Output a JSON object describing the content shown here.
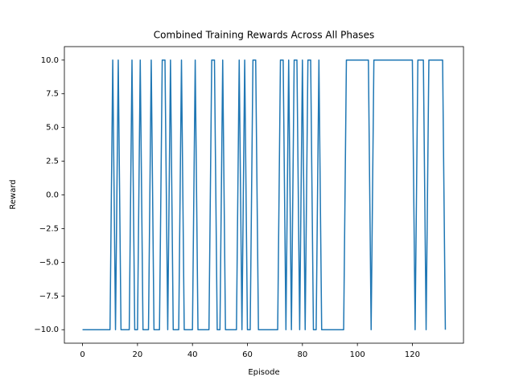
{
  "chart_data": {
    "type": "line",
    "title": "Combined Training Rewards Across All Phases",
    "x_label": "Episode",
    "y_label": "Reward",
    "x": [
      0,
      1,
      2,
      3,
      4,
      5,
      6,
      7,
      8,
      9,
      10,
      11,
      12,
      13,
      14,
      15,
      16,
      17,
      18,
      19,
      20,
      21,
      22,
      23,
      24,
      25,
      26,
      27,
      28,
      29,
      30,
      31,
      32,
      33,
      34,
      35,
      36,
      37,
      38,
      39,
      40,
      41,
      42,
      43,
      44,
      45,
      46,
      47,
      48,
      49,
      50,
      51,
      52,
      53,
      54,
      55,
      56,
      57,
      58,
      59,
      60,
      61,
      62,
      63,
      64,
      65,
      66,
      67,
      68,
      69,
      70,
      71,
      72,
      73,
      74,
      75,
      76,
      77,
      78,
      79,
      80,
      81,
      82,
      83,
      84,
      85,
      86,
      87,
      88,
      89,
      90,
      91,
      92,
      93,
      94,
      95,
      96,
      97,
      98,
      99,
      100,
      101,
      102,
      103,
      104,
      105,
      106,
      107,
      108,
      109,
      110,
      111,
      112,
      113,
      114,
      115,
      116,
      117,
      118,
      119,
      120,
      121,
      122,
      123,
      124,
      125,
      126,
      127,
      128,
      129,
      130,
      131,
      132
    ],
    "values": [
      -10,
      -10,
      -10,
      -10,
      -10,
      -10,
      -10,
      -10,
      -10,
      -10,
      -10,
      10,
      -10,
      10,
      -10,
      -10,
      -10,
      -10,
      10,
      -10,
      -10,
      10,
      -10,
      -10,
      -10,
      10,
      -10,
      -10,
      -10,
      10,
      10,
      -10,
      10,
      -10,
      -10,
      -10,
      10,
      -10,
      -10,
      -10,
      -10,
      10,
      -10,
      -10,
      -10,
      -10,
      -10,
      10,
      10,
      -10,
      -10,
      10,
      -10,
      -10,
      -10,
      -10,
      -10,
      10,
      -10,
      10,
      -10,
      -10,
      10,
      10,
      -10,
      -10,
      -10,
      -10,
      -10,
      -10,
      -10,
      -10,
      10,
      10,
      -10,
      10,
      -10,
      10,
      10,
      -10,
      10,
      -10,
      10,
      10,
      -10,
      -10,
      10,
      -10,
      -10,
      -10,
      -10,
      -10,
      -10,
      -10,
      -10,
      -10,
      10,
      10,
      10,
      10,
      10,
      10,
      10,
      10,
      10,
      -10,
      10,
      10,
      10,
      10,
      10,
      10,
      10,
      10,
      10,
      10,
      10,
      10,
      10,
      10,
      10,
      -10,
      10,
      10,
      10,
      -10,
      10,
      10,
      10,
      10,
      10,
      10,
      -10
    ],
    "color": "#1f77b4",
    "xlim": [
      -6.6,
      138.6
    ],
    "ylim": [
      -11,
      11
    ],
    "xticks": [
      0,
      20,
      40,
      60,
      80,
      100,
      120
    ],
    "yticks": [
      {
        "value": -10,
        "label": "−10.0"
      },
      {
        "value": -7.5,
        "label": "−7.5"
      },
      {
        "value": -5,
        "label": "−5.0"
      },
      {
        "value": -2.5,
        "label": "−2.5"
      },
      {
        "value": 0,
        "label": "0.0"
      },
      {
        "value": 2.5,
        "label": "2.5"
      },
      {
        "value": 5,
        "label": "5.0"
      },
      {
        "value": 7.5,
        "label": "7.5"
      },
      {
        "value": 10,
        "label": "10.0"
      }
    ]
  }
}
